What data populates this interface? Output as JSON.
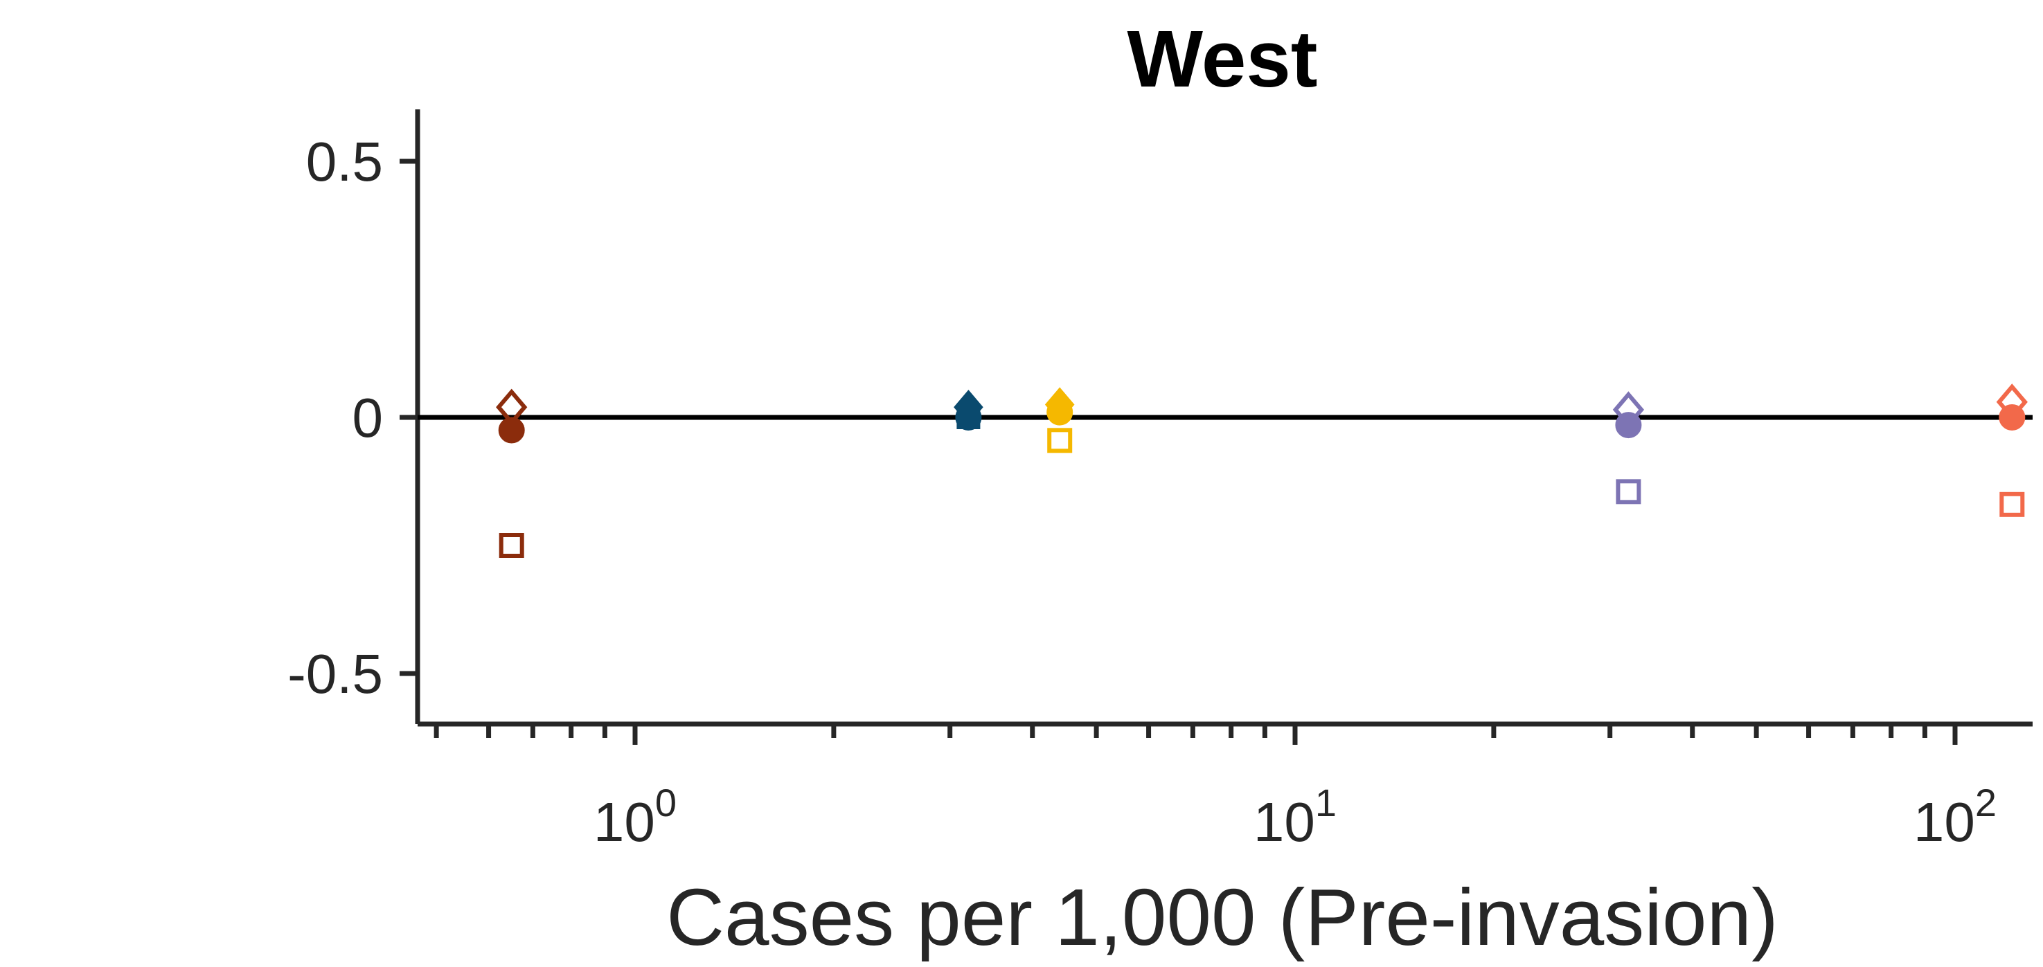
{
  "chart_data": {
    "type": "scatter",
    "title": "West",
    "xlabel": "Cases per 1,000 (Pre-invasion)",
    "ylabel": "",
    "xscale": "log",
    "xlim": [
      0.5,
      125
    ],
    "ylim": [
      -0.6,
      0.6
    ],
    "x_ticks": [
      {
        "value": 1,
        "base": "10",
        "exp": "0"
      },
      {
        "value": 10,
        "base": "10",
        "exp": "1"
      },
      {
        "value": 100,
        "base": "10",
        "exp": "2"
      }
    ],
    "y_ticks": [
      {
        "value": 0.5,
        "label": "0.5"
      },
      {
        "value": 0,
        "label": "0"
      },
      {
        "value": -0.5,
        "label": "-0.5"
      }
    ],
    "reference_line_y": 0,
    "grid": false,
    "marker_types": [
      "diamond-open",
      "circle-filled",
      "square-open"
    ],
    "series": [
      {
        "color": "#8b2c0c",
        "points": [
          {
            "x": 0.65,
            "y": 0.02,
            "marker": "diamond-open"
          },
          {
            "x": 0.65,
            "y": -0.025,
            "marker": "circle-filled"
          },
          {
            "x": 0.65,
            "y": -0.25,
            "marker": "square-open"
          }
        ]
      },
      {
        "color": "#0a4a6e",
        "points": [
          {
            "x": 3.2,
            "y": 0.02,
            "marker": "diamond-filled"
          },
          {
            "x": 3.2,
            "y": 0.0,
            "marker": "circle-filled"
          },
          {
            "x": 3.2,
            "y": 0.0,
            "marker": "square-filled"
          }
        ]
      },
      {
        "color": "#f5b800",
        "points": [
          {
            "x": 4.4,
            "y": 0.025,
            "marker": "diamond-filled"
          },
          {
            "x": 4.4,
            "y": 0.01,
            "marker": "circle-filled"
          },
          {
            "x": 4.4,
            "y": -0.045,
            "marker": "square-open"
          }
        ]
      },
      {
        "color": "#7d74b4",
        "points": [
          {
            "x": 32,
            "y": 0.015,
            "marker": "diamond-open"
          },
          {
            "x": 32,
            "y": -0.015,
            "marker": "circle-filled"
          },
          {
            "x": 32,
            "y": -0.145,
            "marker": "square-open"
          }
        ]
      },
      {
        "color": "#f2694a",
        "points": [
          {
            "x": 122,
            "y": 0.03,
            "marker": "diamond-open"
          },
          {
            "x": 122,
            "y": 0.0,
            "marker": "circle-filled"
          },
          {
            "x": 122,
            "y": -0.17,
            "marker": "square-open"
          }
        ]
      }
    ]
  }
}
